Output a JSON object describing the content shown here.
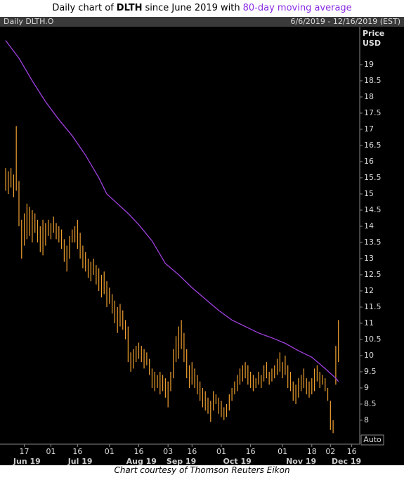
{
  "header": {
    "title": {
      "prefix": "Daily chart of",
      "ticker": "DLTH",
      "middle": "since June 2019 with",
      "highlight": "80-day moving average"
    }
  },
  "chart_data": {
    "type": "ohlc",
    "panel_label": "Daily DLTH.O",
    "date_range": "6/6/2019 - 12/16/2019 (EST)",
    "ylabel": [
      "Price",
      "USD"
    ],
    "scale_button": "Auto",
    "ylim": [
      7.26,
      20.13
    ],
    "xlim": [
      -0.8,
      133
    ],
    "yticks": [
      8,
      8.5,
      9,
      9.5,
      10,
      10.5,
      11,
      11.5,
      12,
      12.5,
      13,
      13.5,
      14,
      14.5,
      15,
      15.5,
      16,
      16.5,
      17,
      17.5,
      18,
      18.5,
      19
    ],
    "xticks": [
      {
        "value": 7,
        "label": "17"
      },
      {
        "value": 17,
        "label": "01"
      },
      {
        "value": 27,
        "label": "16"
      },
      {
        "value": 39,
        "label": "01"
      },
      {
        "value": 50,
        "label": "16"
      },
      {
        "value": 61,
        "label": "03"
      },
      {
        "value": 70,
        "label": "16"
      },
      {
        "value": 81,
        "label": "01"
      },
      {
        "value": 92,
        "label": "16"
      },
      {
        "value": 104,
        "label": "01"
      },
      {
        "value": 115,
        "label": "18"
      },
      {
        "value": 122,
        "label": "02"
      },
      {
        "value": 130,
        "label": "16"
      }
    ],
    "months": [
      {
        "value": 8,
        "label": "Jun 19"
      },
      {
        "value": 28,
        "label": "Jul 19"
      },
      {
        "value": 51,
        "label": "Aug 19"
      },
      {
        "value": 66,
        "label": "Sep 19"
      },
      {
        "value": 87,
        "label": "Oct 19"
      },
      {
        "value": 111,
        "label": "Nov 19"
      },
      {
        "value": 128,
        "label": "Dec 19"
      }
    ],
    "series": [
      {
        "name": "DLTH.O",
        "color": "#f0a030",
        "low": [
          15.1,
          15.0,
          15.2,
          14.9,
          15.1,
          14.0,
          13.0,
          13.4,
          13.6,
          13.7,
          13.5,
          13.8,
          13.5,
          13.2,
          13.1,
          13.4,
          13.7,
          13.6,
          13.8,
          13.6,
          13.5,
          13.3,
          12.9,
          12.6,
          13.0,
          13.5,
          13.5,
          13.3,
          13.0,
          12.7,
          12.6,
          12.4,
          12.3,
          12.5,
          12.2,
          12.0,
          11.8,
          11.9,
          11.5,
          11.6,
          11.3,
          11.0,
          10.7,
          10.9,
          10.8,
          10.5,
          9.8,
          9.5,
          9.6,
          9.8,
          9.9,
          9.8,
          9.6,
          9.7,
          9.4,
          9.0,
          8.9,
          9.0,
          8.8,
          8.9,
          8.7,
          8.4,
          8.9,
          9.3,
          9.8,
          9.9,
          10.2,
          9.8,
          9.3,
          9.0,
          9.1,
          9.0,
          8.8,
          8.6,
          8.4,
          8.3,
          8.2,
          7.95,
          8.3,
          8.5,
          8.2,
          8.1,
          8.0,
          8.1,
          8.3,
          8.6,
          8.8,
          8.9,
          9.1,
          9.2,
          9.3,
          9.1,
          9.0,
          8.9,
          9.0,
          9.1,
          9.0,
          9.2,
          9.3,
          9.1,
          9.2,
          9.3,
          9.4,
          9.5,
          9.3,
          9.4,
          9.0,
          8.9,
          8.6,
          8.5,
          8.7,
          8.9,
          9.0,
          8.8,
          8.7,
          8.8,
          8.9,
          9.2,
          9.0,
          9.1,
          8.9,
          8.6,
          7.7,
          7.6,
          9.1,
          9.8
        ],
        "high": [
          15.8,
          15.7,
          15.8,
          15.6,
          17.1,
          15.4,
          14.2,
          14.4,
          14.7,
          14.6,
          14.5,
          14.4,
          14.2,
          14.0,
          14.2,
          14.1,
          14.2,
          14.1,
          14.3,
          14.1,
          14.0,
          13.9,
          13.6,
          13.4,
          13.7,
          13.9,
          14.0,
          14.2,
          13.8,
          13.4,
          13.2,
          13.0,
          12.9,
          13.0,
          12.8,
          12.7,
          12.5,
          12.6,
          12.3,
          12.1,
          11.9,
          11.7,
          11.5,
          11.6,
          11.4,
          11.1,
          10.9,
          10.1,
          10.2,
          10.3,
          10.4,
          10.3,
          10.2,
          10.1,
          9.9,
          9.6,
          9.5,
          9.4,
          9.5,
          9.4,
          9.3,
          9.2,
          9.5,
          10.2,
          10.6,
          10.9,
          11.1,
          10.7,
          10.2,
          9.7,
          9.8,
          9.6,
          9.4,
          9.2,
          9.0,
          8.9,
          8.7,
          8.6,
          8.9,
          8.8,
          8.7,
          8.6,
          8.4,
          8.5,
          8.8,
          9.0,
          9.2,
          9.4,
          9.6,
          9.7,
          9.8,
          9.7,
          9.5,
          9.4,
          9.3,
          9.5,
          9.4,
          9.7,
          9.8,
          9.5,
          9.6,
          9.7,
          9.9,
          10.1,
          9.8,
          10.0,
          9.7,
          9.5,
          9.2,
          9.1,
          9.3,
          9.4,
          9.6,
          9.3,
          9.2,
          9.3,
          9.6,
          9.7,
          9.5,
          9.4,
          9.3,
          9.0,
          8.6,
          8.0,
          10.3,
          11.1
        ]
      },
      {
        "name": "80-day moving average",
        "color": "#a040e0",
        "x": [
          0,
          5,
          10,
          15,
          20,
          25,
          30,
          35,
          38,
          42,
          46,
          50,
          55,
          60,
          65,
          70,
          75,
          80,
          85,
          90,
          95,
          100,
          105,
          110,
          115,
          120,
          124,
          125
        ],
        "values": [
          19.75,
          19.2,
          18.5,
          17.85,
          17.3,
          16.8,
          16.2,
          15.5,
          15.0,
          14.7,
          14.4,
          14.05,
          13.55,
          12.85,
          12.5,
          12.1,
          11.75,
          11.4,
          11.1,
          10.9,
          10.7,
          10.55,
          10.38,
          10.15,
          9.95,
          9.6,
          9.3,
          9.2
        ]
      }
    ]
  },
  "footer": "Chart courtesy of Thomson Reuters Eikon"
}
